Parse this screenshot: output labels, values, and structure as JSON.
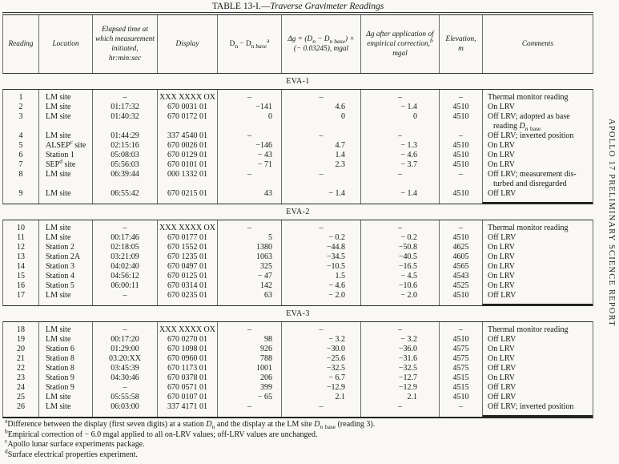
{
  "title": {
    "prefix": "TABLE 13-I.",
    "dash": "—",
    "name": "Traverse Gravimeter Readings"
  },
  "margin_text": "APOLLO 17 PRELIMINARY SCIENCE REPORT",
  "table": {
    "columns": [
      {
        "key": "reading",
        "label": "Reading"
      },
      {
        "key": "location",
        "label": "Location"
      },
      {
        "key": "elapsed-time",
        "label": "Elapsed time at which measurement initiated, hr:min:sec"
      },
      {
        "key": "display",
        "label": "Display"
      },
      {
        "key": "dn-minus-dn-base",
        "label": "D<sub>n</sub> − D<sub>n <i>base</i></sub><sup>a</sup>"
      },
      {
        "key": "delta-g",
        "label": "Δg = (D<sub>n</sub> − D<sub>n base</sub>) × (− 0.03245), mgal"
      },
      {
        "key": "delta-g-corrected",
        "label": "Δg after application of empirical correction,<sup>b</sup> mgal"
      },
      {
        "key": "elevation",
        "label": "Elevation,<br>m"
      },
      {
        "key": "comments",
        "label": "Comments"
      }
    ],
    "sections": [
      {
        "label": "EVA-1",
        "rows": [
          [
            "1",
            "LM site",
            "–",
            "XXX XXXX OX",
            "–",
            "–",
            "–",
            "–",
            "Thermal monitor reading"
          ],
          [
            "2",
            "LM site",
            "01:17:32",
            "670 0031 01",
            "−141",
            "4.6",
            "− 1.4",
            "4510",
            "On LRV"
          ],
          [
            "3",
            "LM site",
            "01:40:32",
            "670 0172 01",
            "0",
            "0",
            "0",
            "4510",
            "Off LRV; adopted as base reading <i>D<sub>n</sub></i> <sub>base</sub>"
          ],
          [
            "4",
            "LM site",
            "01:44:29",
            "337 4540 01",
            "–",
            "–",
            "–",
            "–",
            "Off LRV; inverted position"
          ],
          [
            "5",
            "ALSEP<sup>c</sup> site",
            "02:15:16",
            "670 0026 01",
            "−146",
            "4.7",
            "− 1.3",
            "4510",
            "On LRV"
          ],
          [
            "6",
            "Station 1",
            "05:08:03",
            "670 0129 01",
            "− 43",
            "1.4",
            "− 4.6",
            "4510",
            "On LRV"
          ],
          [
            "7",
            "SEP<sup>d</sup> site",
            "05:56:03",
            "670 0101 01",
            "− 71",
            "2.3",
            "− 3.7",
            "4510",
            "On LRV"
          ],
          [
            "8",
            "LM site",
            "06:39:44",
            "000 1332 01",
            "–",
            "–",
            "–",
            "–",
            "Off LRV; measurement dis-turbed and disregarded"
          ],
          [
            "9",
            "LM site",
            "06:55:42",
            "670 0215 01",
            "43",
            "− 1.4",
            "− 1.4",
            "4510",
            "Off LRV"
          ]
        ]
      },
      {
        "label": "EVA-2",
        "rows": [
          [
            "10",
            "LM site",
            "–",
            "XXX XXXX OX",
            "–",
            "–",
            "–",
            "–",
            "Thermal monitor reading"
          ],
          [
            "11",
            "LM site",
            "00:17:46",
            "670 0177 01",
            "5",
            "− 0.2",
            "− 0.2",
            "4510",
            "Off LRV"
          ],
          [
            "12",
            "Station 2",
            "02:18:05",
            "670 1552 01",
            "1380",
            "−44.8",
            "−50.8",
            "4625",
            "On LRV"
          ],
          [
            "13",
            "Station 2A",
            "03:21:09",
            "670 1235 01",
            "1063",
            "−34.5",
            "−40.5",
            "4605",
            "On LRV"
          ],
          [
            "14",
            "Station 3",
            "04:02:40",
            "670 0497 01",
            "325",
            "−10.5",
            "−16.5",
            "4565",
            "On LRV"
          ],
          [
            "15",
            "Station 4",
            "04:56:12",
            "670 0125 01",
            "− 47",
            "1.5",
            "− 4.5",
            "4543",
            "On LRV"
          ],
          [
            "16",
            "Station 5",
            "06:00:11",
            "670 0314 01",
            "142",
            "− 4.6",
            "−10.6",
            "4525",
            "On LRV"
          ],
          [
            "17",
            "LM site",
            "–",
            "670 0235 01",
            "63",
            "− 2.0",
            "− 2.0",
            "4510",
            "Off LRV"
          ]
        ]
      },
      {
        "label": "EVA-3",
        "rows": [
          [
            "18",
            "LM site",
            "–",
            "XXX XXXX OX",
            "–",
            "–",
            "–",
            "–",
            "Thermal monitor reading"
          ],
          [
            "19",
            "LM site",
            "00:17:20",
            "670 0270 01",
            "98",
            "− 3.2",
            "− 3.2",
            "4510",
            "Off LRV"
          ],
          [
            "20",
            "Station 6",
            "01:29:00",
            "670 1098 01",
            "926",
            "−30.0",
            "−36.0",
            "4575",
            "On LRV"
          ],
          [
            "21",
            "Station 8",
            "03:20:XX",
            "670 0960 01",
            "788",
            "−25.6",
            "−31.6",
            "4575",
            "On LRV"
          ],
          [
            "22",
            "Station 8",
            "03:45:39",
            "670 1173 01",
            "1001",
            "−32.5",
            "−32.5",
            "4575",
            "Off LRV"
          ],
          [
            "23",
            "Station 9",
            "04:30:46",
            "670 0378 01",
            "206",
            "− 6.7",
            "−12.7",
            "4515",
            "On LRV"
          ],
          [
            "24",
            "Station 9",
            "–",
            "670 0571 01",
            "399",
            "−12.9",
            "−12.9",
            "4515",
            "Off LRV"
          ],
          [
            "25",
            "LM site",
            "05:55:58",
            "670 0107 01",
            "− 65",
            "2.1",
            "2.1",
            "4510",
            "Off LRV"
          ],
          [
            "26",
            "LM site",
            "06:03:00",
            "337 4171 01",
            "–",
            "–",
            "–",
            "–",
            "Off LRV; inverted position"
          ]
        ]
      }
    ]
  },
  "footnotes": [
    {
      "key": "a",
      "html": "<sup>a</sup>Difference between the display (first seven digits) at a station <i>D<sub>n</sub></i> and the display at the LM site <i>D<sub>n</sub></i> <sub>base</sub> (reading 3)."
    },
    {
      "key": "b",
      "html": "<sup>b</sup>Empirical correction of − 6.0 mgal applied to all on-LRV values; off-LRV values are unchanged."
    },
    {
      "key": "c",
      "html": "<sup>c</sup>Apollo lunar surface experiments package."
    },
    {
      "key": "d",
      "html": "<sup>d</sup>Surface electrical properties experiment."
    }
  ]
}
